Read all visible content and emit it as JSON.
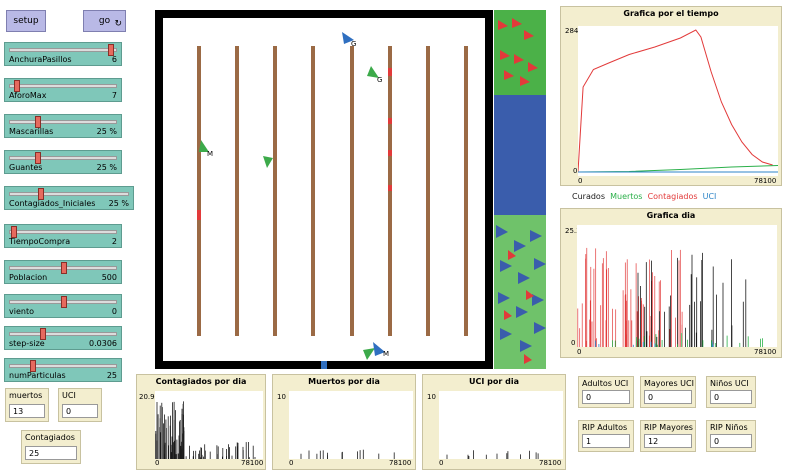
{
  "buttons": {
    "setup": "setup",
    "go": "go"
  },
  "sliders": [
    {
      "label": "AnchuraPasillos",
      "value": "6",
      "frac": 0.95
    },
    {
      "label": "AforoMax",
      "value": "7",
      "frac": 0.05
    },
    {
      "label": "Mascarillas",
      "value": "25 %",
      "frac": 0.25
    },
    {
      "label": "Guantes",
      "value": "25 %",
      "frac": 0.25
    },
    {
      "label": "Contagiados_Iniciales",
      "value": "25 %",
      "frac": 0.25
    },
    {
      "label": "TiempoCompra",
      "value": "2",
      "frac": 0.02
    },
    {
      "label": "Poblacion",
      "value": "500",
      "frac": 0.5
    },
    {
      "label": "viento",
      "value": "0",
      "frac": 0.5
    },
    {
      "label": "step-size",
      "value": "0.0306",
      "frac": 0.3
    },
    {
      "label": "numParticulas",
      "value": "25",
      "frac": 0.2
    }
  ],
  "monitors": {
    "muertos": {
      "label": "muertos",
      "value": "13"
    },
    "uci": {
      "label": "UCI",
      "value": "0"
    },
    "contagiados": {
      "label": "Contagiados",
      "value": "25"
    },
    "adultos_uci": {
      "label": "Adultos UCI",
      "value": "0"
    },
    "mayores_uci": {
      "label": "Mayores UCI",
      "value": "0"
    },
    "ninos_uci": {
      "label": "Niños UCI",
      "value": "0"
    },
    "rip_adultos": {
      "label": "RIP Adultos",
      "value": "1"
    },
    "rip_mayores": {
      "label": "RIP Mayores",
      "value": "12"
    },
    "rip_ninos": {
      "label": "RIP Niños",
      "value": "0"
    }
  },
  "legend": {
    "curados": "Curados",
    "muertos": "Muertos",
    "contagiados": "Contagiados",
    "uci": "UCI"
  },
  "colors": {
    "curados": "#1a1a1a",
    "muertos": "#2bb04a",
    "contagiados": "#e23a3a",
    "uci": "#2f86c8",
    "slider": "#7fc7b9",
    "button": "#b9b9e6",
    "monitor": "#f3eecf"
  },
  "plots": {
    "tiempo": {
      "title": "Grafica por el tiempo",
      "ymax": "284",
      "ymin": "0",
      "xmin": "0",
      "xmax": "78100"
    },
    "dia": {
      "title": "Grafica dia",
      "ymax": "25.3",
      "ymin": "0",
      "xmin": "0",
      "xmax": "78100"
    },
    "contagiados_dia": {
      "title": "Contagiados por dia",
      "ymax": "20.9",
      "ymin": "0",
      "xmin": "0",
      "xmax": "78100"
    },
    "muertos_dia": {
      "title": "Muertos por dia",
      "ymax": "10",
      "ymin": "0",
      "xmin": "0",
      "xmax": "78100"
    },
    "uci_dia": {
      "title": "UCI por dia",
      "ymax": "10",
      "ymin": "0",
      "xmin": "0",
      "xmax": "78100"
    }
  },
  "chart_data": [
    {
      "type": "line",
      "title": "Grafica por el tiempo",
      "xlim": [
        0,
        78100
      ],
      "ylim": [
        0,
        284
      ],
      "series": [
        {
          "name": "Contagiados",
          "color": "#e23a3a",
          "x": [
            0,
            2000,
            6000,
            12000,
            20000,
            30000,
            40000,
            46000,
            48000,
            52000,
            56000,
            60000,
            64000,
            68000,
            72000,
            76000
          ],
          "values": [
            0,
            170,
            205,
            218,
            235,
            250,
            268,
            284,
            270,
            200,
            140,
            95,
            60,
            35,
            20,
            14
          ]
        },
        {
          "name": "Muertos",
          "color": "#2bb04a",
          "x": [
            0,
            20000,
            40000,
            60000,
            78100
          ],
          "values": [
            0,
            1,
            5,
            10,
            13
          ]
        },
        {
          "name": "UCI",
          "color": "#2f86c8",
          "x": [
            0,
            78100
          ],
          "values": [
            0,
            0
          ]
        }
      ]
    },
    {
      "type": "line",
      "title": "Grafica dia",
      "xlim": [
        0,
        78100
      ],
      "ylim": [
        0,
        25.3
      ]
    },
    {
      "type": "bar",
      "title": "Contagiados por dia",
      "xlim": [
        0,
        78100
      ],
      "ylim": [
        0,
        20.9
      ]
    },
    {
      "type": "bar",
      "title": "Muertos por dia",
      "xlim": [
        0,
        78100
      ],
      "ylim": [
        0,
        10
      ]
    },
    {
      "type": "bar",
      "title": "UCI por dia",
      "xlim": [
        0,
        78100
      ],
      "ylim": [
        0,
        10
      ]
    }
  ],
  "world": {
    "labels": [
      "M",
      "G",
      "G",
      "M",
      "M",
      "M"
    ]
  }
}
